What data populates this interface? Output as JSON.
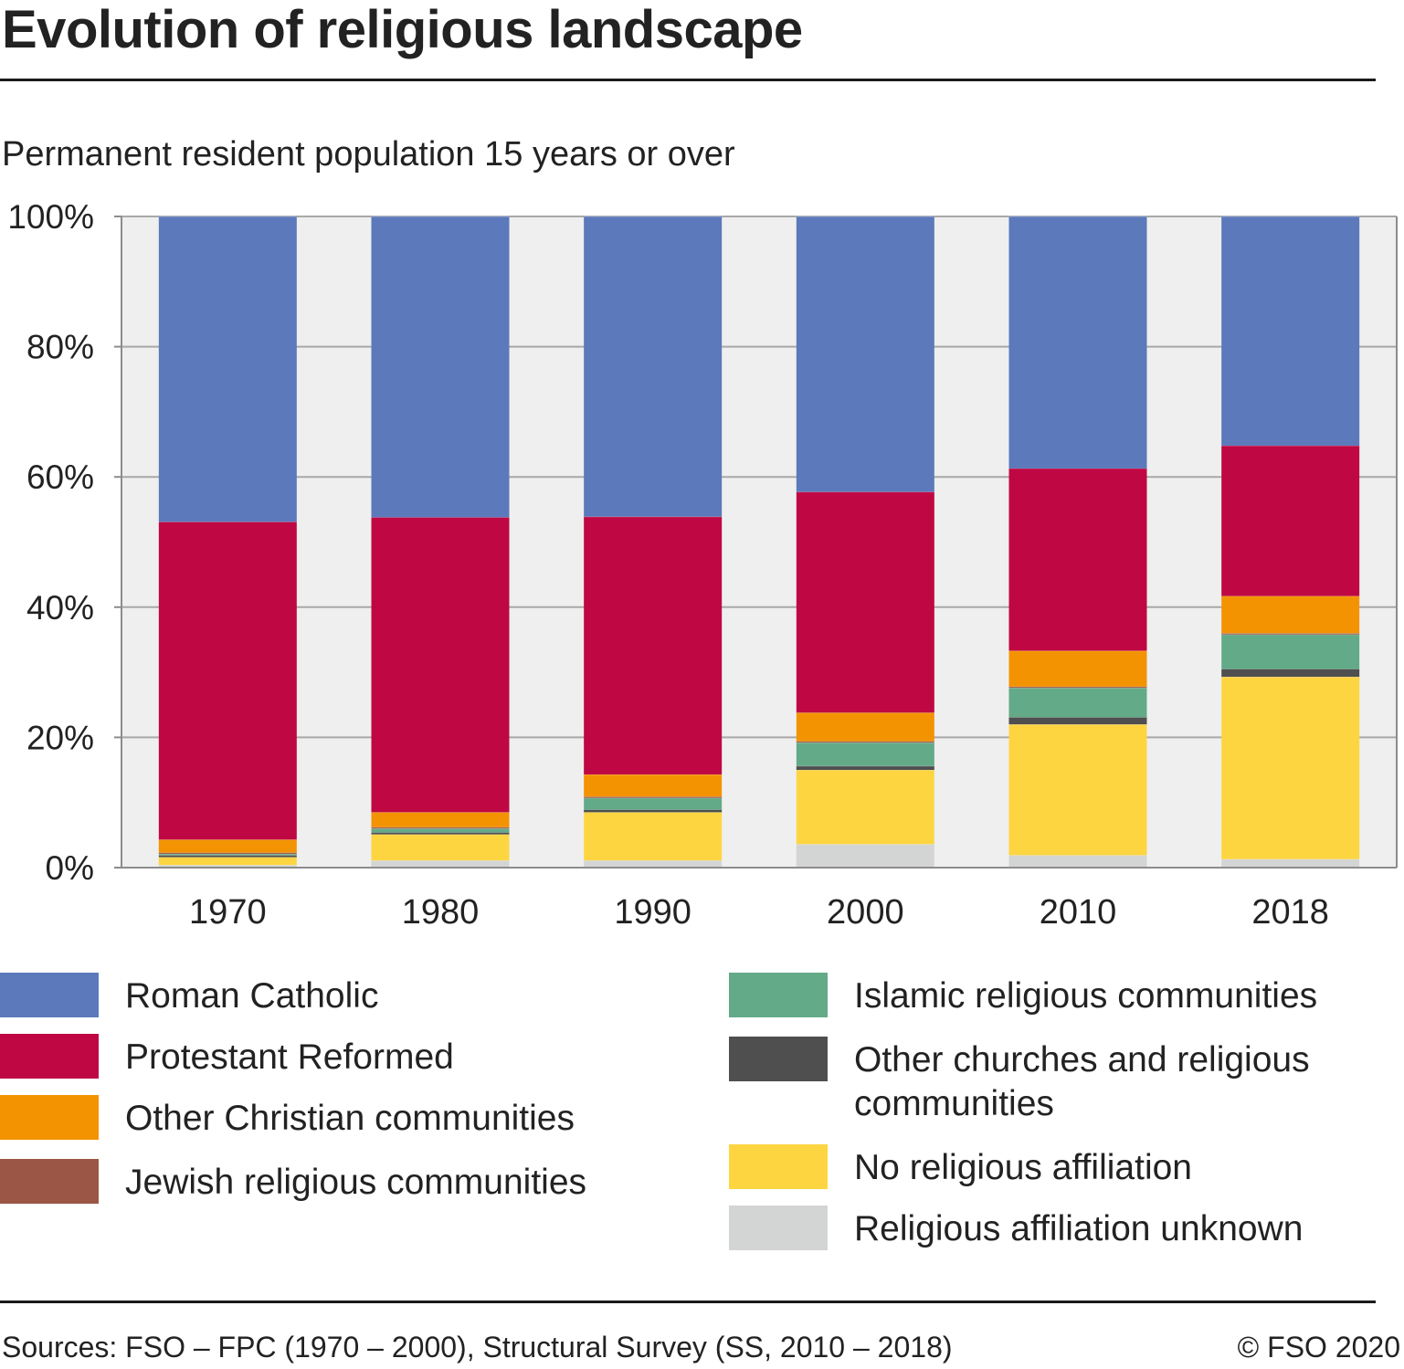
{
  "header": {
    "title": "Evolution of religious landscape",
    "subtitle": "Permanent resident population 15 years or over"
  },
  "footer": {
    "source": "Sources: FSO – FPC (1970 – 2000), Structural Survey (SS, 2010 – 2018)",
    "copyright": "© FSO 2020"
  },
  "colors": {
    "plot_background": "#efefef",
    "grid": "#a8a8a8",
    "axis": "#8c8c8c"
  },
  "chart_data": {
    "type": "bar",
    "stacked": true,
    "title": "Evolution of religious landscape",
    "subtitle": "Permanent resident population 15 years or over",
    "categories": [
      "1970",
      "1980",
      "1990",
      "2000",
      "2010",
      "2018"
    ],
    "ylim": [
      0,
      100
    ],
    "yticks": [
      0,
      20,
      40,
      60,
      80,
      100
    ],
    "ytick_labels": [
      "0%",
      "20%",
      "40%",
      "60%",
      "80%",
      "100%"
    ],
    "grid": true,
    "legend_position": "bottom",
    "series": [
      {
        "name": "Religious affiliation unknown",
        "color": "#d3d5d4",
        "values": [
          0.4,
          1.1,
          1.1,
          3.6,
          1.9,
          1.3
        ]
      },
      {
        "name": "No religious affiliation",
        "color": "#fdd541",
        "values": [
          1.2,
          4.0,
          7.4,
          11.4,
          20.1,
          28.0
        ]
      },
      {
        "name": "Other churches and religious communities",
        "color": "#4f4f4f",
        "values": [
          0.3,
          0.3,
          0.4,
          0.6,
          1.1,
          1.2
        ]
      },
      {
        "name": "Islamic religious communities",
        "color": "#63aa88",
        "values": [
          0.2,
          0.6,
          1.8,
          3.6,
          4.5,
          5.3
        ]
      },
      {
        "name": "Jewish religious communities",
        "color": "#9b5645",
        "values": [
          0.2,
          0.2,
          0.2,
          0.2,
          0.2,
          0.2
        ]
      },
      {
        "name": "Other Christian communities",
        "color": "#f39302",
        "values": [
          2.0,
          2.3,
          3.4,
          4.4,
          5.5,
          5.7
        ]
      },
      {
        "name": "Protestant Reformed",
        "color": "#bf0843",
        "values": [
          48.8,
          45.3,
          39.6,
          33.9,
          28.0,
          23.1
        ]
      },
      {
        "name": "Roman Catholic",
        "color": "#5b79bb",
        "values": [
          46.9,
          46.2,
          46.1,
          42.3,
          38.7,
          35.2
        ]
      }
    ]
  },
  "legend": {
    "left": [
      {
        "label": "Roman Catholic",
        "color": "#5b79bb"
      },
      {
        "label": "Protestant Reformed",
        "color": "#bf0843"
      },
      {
        "label": "Other Christian communities",
        "color": "#f39302"
      },
      {
        "label": "Jewish religious communities",
        "color": "#9b5645"
      }
    ],
    "right": [
      {
        "label": "Islamic religious communities",
        "color": "#63aa88"
      },
      {
        "label": "Other churches and religious communities",
        "color": "#4f4f4f"
      },
      {
        "label": "No religious affiliation",
        "color": "#fdd541"
      },
      {
        "label": "Religious affiliation unknown",
        "color": "#d3d5d4"
      }
    ]
  }
}
